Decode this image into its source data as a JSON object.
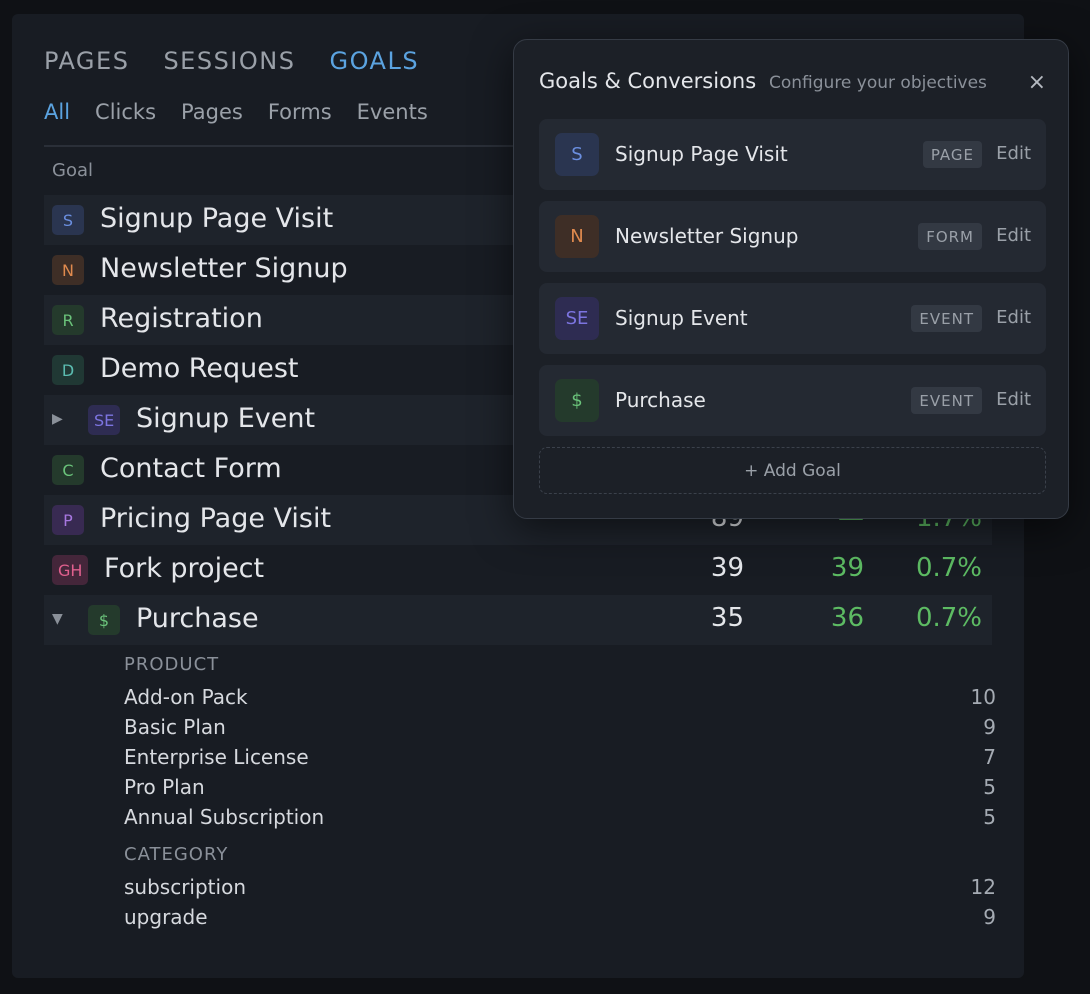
{
  "tabs": [
    "PAGES",
    "SESSIONS",
    "GOALS"
  ],
  "filters": [
    "All",
    "Clicks",
    "Pages",
    "Forms",
    "Events"
  ],
  "table": {
    "goal_header": "Goal",
    "rows": [
      {
        "icon": "S",
        "name": "Signup Page Visit",
        "fg": "#6b8fe0",
        "bg": "#2a3550"
      },
      {
        "icon": "N",
        "name": "Newsletter Signup",
        "fg": "#e08a4e",
        "bg": "#3e2e26"
      },
      {
        "icon": "R",
        "name": "Registration",
        "fg": "#6ac27a",
        "bg": "#243a2c"
      },
      {
        "icon": "D",
        "name": "Demo Request",
        "fg": "#5bbcb0",
        "bg": "#203834"
      },
      {
        "icon": "SE",
        "name": "Signup Event",
        "fg": "#7c74e0",
        "bg": "#2e2c52",
        "caret": "▶"
      },
      {
        "icon": "C",
        "name": "Contact Form",
        "fg": "#6ac27a",
        "bg": "#243a2c"
      },
      {
        "icon": "P",
        "name": "Pricing Page Visit",
        "fg": "#a777e0",
        "bg": "#382a52",
        "v1": "89",
        "v2": "—",
        "v3": "1.7%"
      },
      {
        "icon": "GH",
        "name": "Fork project",
        "fg": "#e0608e",
        "bg": "#44263a",
        "v1": "39",
        "v2": "39",
        "v3": "0.7%"
      },
      {
        "icon": "$",
        "name": "Purchase",
        "fg": "#6ac27a",
        "bg": "#243a2c",
        "caret": "▼",
        "v1": "35",
        "v2": "36",
        "v3": "0.7%"
      }
    ]
  },
  "breakdown": {
    "product_label": "PRODUCT",
    "products": [
      {
        "name": "Add-on Pack",
        "value": "10"
      },
      {
        "name": "Basic Plan",
        "value": "9"
      },
      {
        "name": "Enterprise License",
        "value": "7"
      },
      {
        "name": "Pro Plan",
        "value": "5"
      },
      {
        "name": "Annual Subscription",
        "value": "5"
      }
    ],
    "category_label": "CATEGORY",
    "categories": [
      {
        "name": "subscription",
        "value": "12"
      },
      {
        "name": "upgrade",
        "value": "9"
      }
    ]
  },
  "popup": {
    "title": "Goals & Conversions",
    "subtitle": "Configure your objectives",
    "close": "×",
    "edit_label": "Edit",
    "add_goal": "+ Add Goal",
    "goals": [
      {
        "icon": "S",
        "name": "Signup Page Visit",
        "type": "PAGE",
        "fg": "#6b8fe0",
        "bg": "#2a3550"
      },
      {
        "icon": "N",
        "name": "Newsletter Signup",
        "type": "FORM",
        "fg": "#e08a4e",
        "bg": "#3e2e26"
      },
      {
        "icon": "SE",
        "name": "Signup Event",
        "type": "EVENT",
        "fg": "#7c74e0",
        "bg": "#2e2c52"
      },
      {
        "icon": "$",
        "name": "Purchase",
        "type": "EVENT",
        "fg": "#6ac27a",
        "bg": "#243a2c"
      }
    ]
  }
}
